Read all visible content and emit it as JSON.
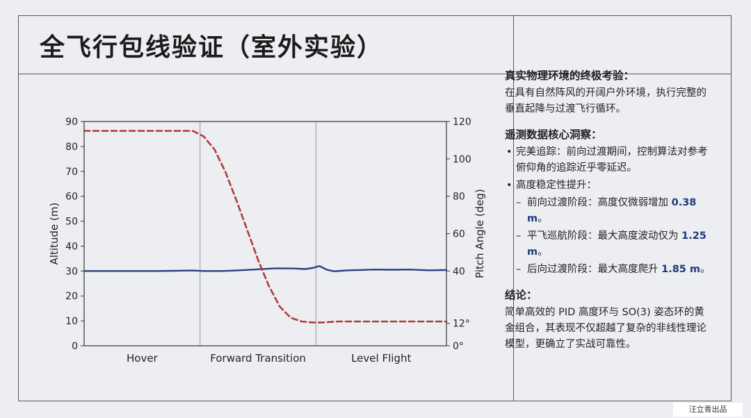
{
  "title": "全飞行包线验证（室外实验）",
  "chart_data": {
    "type": "line",
    "xlabel": "",
    "ylabel_left": "Altitude (m)",
    "ylabel_right": "Pitch Angle (deg)",
    "y_left_lim": [
      0,
      90
    ],
    "y_left_ticks": [
      "0",
      "10",
      "20",
      "30",
      "40",
      "50",
      "60",
      "70",
      "80",
      "90"
    ],
    "y_right_lim": [
      0,
      120
    ],
    "y_right_ticks": [
      "0°",
      "12°",
      "40",
      "60",
      "80",
      "100",
      "120"
    ],
    "y_right_tick_values": [
      0,
      12,
      40,
      60,
      80,
      100,
      120
    ],
    "x_lim": [
      0,
      100
    ],
    "phases": [
      "Hover",
      "Forward Transition",
      "Level Flight"
    ],
    "phase_boundaries": [
      32,
      64
    ],
    "grid": false,
    "series": [
      {
        "axis": "left",
        "color": "#2b3f80",
        "style": "solid",
        "x": [
          0,
          10,
          20,
          25,
          30,
          33,
          38,
          43,
          48,
          53,
          58,
          61,
          63,
          65,
          67,
          69,
          71,
          73,
          76,
          80,
          85,
          90,
          95,
          100
        ],
        "y": [
          30,
          30,
          30,
          30.1,
          30.2,
          30,
          30,
          30.3,
          30.7,
          31.1,
          31.0,
          30.8,
          31.2,
          32.0,
          30.5,
          29.9,
          30.1,
          30.3,
          30.4,
          30.6,
          30.5,
          30.6,
          30.3,
          30.4
        ]
      },
      {
        "axis": "right",
        "color": "#b03a3a",
        "style": "dashed",
        "x": [
          0,
          20,
          30,
          33,
          36,
          39,
          42,
          45,
          48,
          51,
          54,
          57,
          60,
          63,
          66,
          70,
          80,
          90,
          100
        ],
        "y": [
          115,
          115,
          115,
          112,
          105,
          93,
          78,
          62,
          46,
          32,
          21,
          15,
          13,
          12.5,
          12.5,
          13,
          13,
          13,
          13
        ]
      }
    ]
  },
  "panel": {
    "sec1_head": "真实物理环境的终极考验：",
    "sec1_text": "在具有自然阵风的开阔户外环境，执行完整的垂直起降与过渡飞行循环。",
    "sec2_head": "遥测数据核心洞察：",
    "b1": "完美追踪：前向过渡期间，控制算法对参考俯仰角的追踪近乎零延迟。",
    "b2": "高度稳定性提升：",
    "s1_text": "前向过渡阶段：高度仅微弱增加 ",
    "s1_val": "0.38 m",
    "s1_end": "。",
    "s2_text": "平飞巡航阶段：最大高度波动仅为 ",
    "s2_val": "1.25 m",
    "s2_end": "。",
    "s3_text": "后向过渡阶段：最大高度爬升 ",
    "s3_val": "1.85 m",
    "s3_end": "。",
    "sec3_head": "结论：",
    "sec3_text": "简单高效的 PID 高度环与 SO(3) 姿态环的黄金组合，其表现不仅超越了复杂的非线性理论模型，更确立了实战可靠性。"
  },
  "credit": "汪立青出品"
}
